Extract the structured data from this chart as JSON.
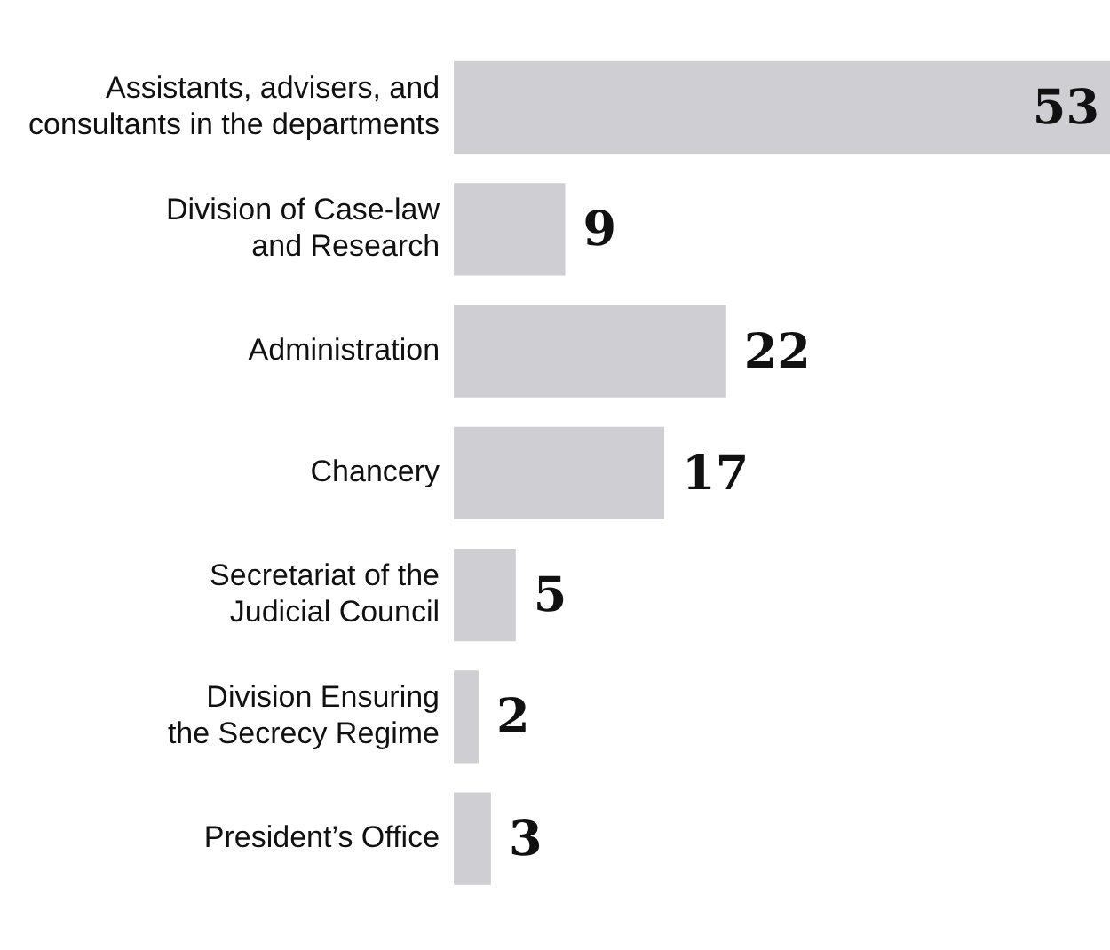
{
  "chart_data": {
    "type": "bar",
    "orientation": "horizontal",
    "categories": [
      "Assistants, advisers, and consultants in the departments",
      "Division of Case-law and Research",
      "Administration",
      "Chancery",
      "Secretariat of the Judicial Council",
      "Division Ensuring the Secrecy Regime",
      "President’s Office"
    ],
    "values": [
      53,
      9,
      22,
      17,
      5,
      2,
      3
    ],
    "color": "#cfcfd3",
    "data_labels": true,
    "grid": false,
    "legend": false
  }
}
